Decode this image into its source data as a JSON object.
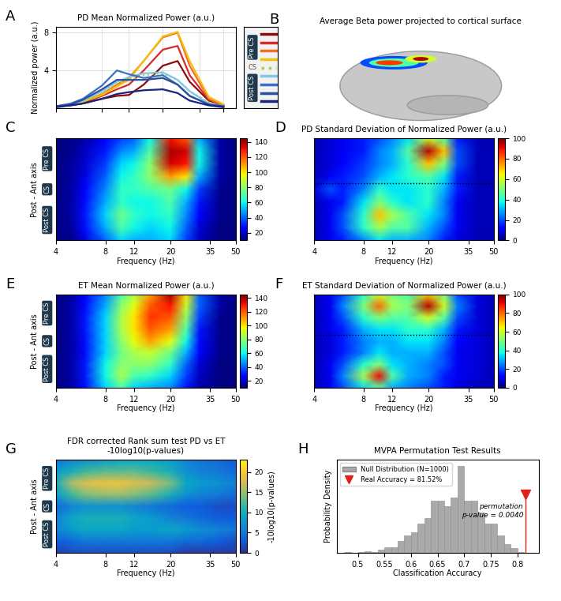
{
  "chart_data": [
    {
      "panel": "A",
      "type": "line",
      "title": "PD Mean Normalized Power (a.u.)",
      "ylabel": "Normalized power (a.u.)",
      "log": "x",
      "grid": true,
      "tick_labels": "y",
      "x": [
        4,
        5,
        6,
        8,
        10,
        12,
        15,
        20,
        25,
        30,
        40,
        50
      ],
      "xlim": [
        4,
        60
      ],
      "xticks": [
        4,
        8,
        12,
        20,
        35,
        50
      ],
      "ylim": [
        0,
        8.6
      ],
      "yticks": [
        4,
        8
      ],
      "annotations": [
        "Pre CS",
        "CS",
        "Post CS"
      ],
      "series": [
        {
          "color": "#8b0a0a",
          "line_style": "solid",
          "values": [
            0.2,
            0.3,
            0.5,
            1.0,
            1.3,
            1.4,
            2.5,
            4.5,
            5.0,
            2.8,
            0.8,
            0.3
          ]
        },
        {
          "color": "#d42a2a",
          "line_style": "solid",
          "values": [
            0.2,
            0.4,
            0.6,
            1.3,
            2.0,
            2.5,
            4.0,
            6.2,
            6.6,
            3.5,
            0.9,
            0.3
          ]
        },
        {
          "color": "#f0702a",
          "line_style": "solid",
          "values": [
            0.2,
            0.4,
            0.7,
            1.5,
            2.5,
            3.2,
            5.0,
            7.5,
            8.0,
            4.5,
            1.0,
            0.3
          ]
        },
        {
          "color": "#f5c010",
          "line_style": "solid",
          "values": [
            0.2,
            0.4,
            0.7,
            1.4,
            2.3,
            3.0,
            5.0,
            7.6,
            8.1,
            5.0,
            1.2,
            0.4
          ]
        },
        {
          "color": "#b5c940",
          "line_style": "dotted",
          "values": [
            0.2,
            0.4,
            0.7,
            1.6,
            2.6,
            3.0,
            3.5,
            3.7,
            3.0,
            1.8,
            0.6,
            0.2
          ]
        },
        {
          "color": "#7fc8e8",
          "line_style": "solid",
          "values": [
            0.2,
            0.4,
            0.8,
            1.8,
            2.8,
            3.3,
            3.7,
            3.8,
            3.0,
            1.8,
            0.5,
            0.2
          ]
        },
        {
          "color": "#3a70c0",
          "line_style": "solid",
          "values": [
            0.2,
            0.5,
            1.0,
            2.4,
            4.0,
            3.6,
            3.2,
            3.5,
            2.5,
            1.3,
            0.4,
            0.2
          ]
        },
        {
          "color": "#2a50a0",
          "line_style": "solid",
          "values": [
            0.2,
            0.4,
            0.9,
            2.0,
            3.0,
            3.0,
            3.0,
            3.2,
            2.5,
            1.3,
            0.4,
            0.2
          ]
        },
        {
          "color": "#1a237e",
          "line_style": "solid",
          "values": [
            0.1,
            0.3,
            0.5,
            1.0,
            1.5,
            1.7,
            1.9,
            2.0,
            1.6,
            0.8,
            0.3,
            0.1
          ]
        }
      ]
    },
    {
      "panel": "B",
      "type": "image",
      "title": "Average Beta power projected to cortical surface"
    },
    {
      "panel": "C",
      "type": "heatmap",
      "color": "jet",
      "log": "x",
      "tick_labels": "x",
      "xlabel": "Frequency (Hz)",
      "ylabel": "Post - Ant axis",
      "annotations": [
        "Pre CS",
        "CS",
        "Post CS"
      ],
      "x": [
        4,
        5,
        6,
        8,
        10,
        12,
        15,
        20,
        25,
        30,
        40,
        50
      ],
      "xlim": [
        4,
        50
      ],
      "xticks": [
        4,
        8,
        12,
        20,
        35,
        50
      ],
      "colorbar_range": [
        10,
        145
      ],
      "colorbar_ticks": [
        20,
        40,
        60,
        80,
        100,
        120,
        140
      ],
      "cells": [
        [
          10,
          12,
          15,
          25,
          35,
          40,
          60,
          130,
          120,
          50,
          15,
          10
        ],
        [
          10,
          12,
          18,
          30,
          45,
          50,
          70,
          140,
          135,
          60,
          15,
          10
        ],
        [
          10,
          14,
          20,
          35,
          55,
          60,
          80,
          135,
          130,
          60,
          15,
          10
        ],
        [
          10,
          14,
          22,
          40,
          60,
          65,
          80,
          110,
          100,
          50,
          15,
          10
        ],
        [
          10,
          15,
          25,
          45,
          65,
          65,
          70,
          75,
          60,
          35,
          12,
          10
        ],
        [
          10,
          15,
          28,
          50,
          65,
          60,
          60,
          70,
          50,
          30,
          12,
          10
        ],
        [
          10,
          15,
          30,
          55,
          75,
          65,
          60,
          65,
          45,
          25,
          12,
          10
        ],
        [
          10,
          14,
          28,
          50,
          70,
          60,
          55,
          60,
          40,
          20,
          10,
          10
        ],
        [
          10,
          12,
          22,
          40,
          55,
          50,
          50,
          55,
          35,
          18,
          10,
          10
        ]
      ]
    },
    {
      "panel": "D",
      "type": "heatmap",
      "color": "jet",
      "log": "x",
      "tick_labels": "x",
      "title": "PD Standard Deviation of Normalized Power (a.u.)",
      "xlabel": "Frequency (Hz)",
      "x": [
        4,
        5,
        6,
        8,
        10,
        12,
        15,
        20,
        25,
        30,
        40,
        50
      ],
      "xlim": [
        4,
        50
      ],
      "xticks": [
        4,
        8,
        12,
        20,
        35,
        50
      ],
      "colorbar_range": [
        0,
        100
      ],
      "colorbar_ticks": [
        0,
        20,
        40,
        60,
        80,
        100
      ],
      "cells": [
        [
          5,
          8,
          10,
          15,
          20,
          25,
          35,
          60,
          45,
          15,
          5,
          5
        ],
        [
          5,
          8,
          10,
          15,
          25,
          30,
          45,
          95,
          70,
          20,
          5,
          5
        ],
        [
          5,
          8,
          12,
          18,
          25,
          30,
          40,
          70,
          50,
          20,
          5,
          5
        ],
        [
          5,
          10,
          15,
          20,
          30,
          35,
          40,
          45,
          35,
          15,
          5,
          5
        ],
        [
          8,
          20,
          15,
          25,
          40,
          35,
          35,
          40,
          30,
          15,
          5,
          5
        ],
        [
          5,
          10,
          15,
          35,
          50,
          40,
          35,
          40,
          25,
          10,
          5,
          5
        ],
        [
          5,
          10,
          20,
          40,
          70,
          55,
          45,
          35,
          25,
          10,
          5,
          5
        ],
        [
          5,
          10,
          20,
          40,
          55,
          45,
          45,
          30,
          20,
          10,
          5,
          5
        ],
        [
          5,
          10,
          15,
          25,
          35,
          30,
          30,
          25,
          15,
          8,
          5,
          5
        ]
      ]
    },
    {
      "panel": "E",
      "type": "heatmap",
      "color": "jet",
      "log": "x",
      "tick_labels": "x",
      "title": "ET Mean Normalized Power (a.u.)",
      "xlabel": "Frequency (Hz)",
      "ylabel": "Post - Ant axis",
      "annotations": [
        "Pre CS",
        "CS",
        "Post CS"
      ],
      "x": [
        4,
        5,
        6,
        8,
        10,
        12,
        15,
        20,
        25,
        30,
        40,
        50
      ],
      "xlim": [
        4,
        50
      ],
      "xticks": [
        4,
        8,
        12,
        20,
        35,
        50
      ],
      "colorbar_range": [
        10,
        145
      ],
      "colorbar_ticks": [
        20,
        40,
        60,
        80,
        100,
        120,
        140
      ],
      "cells": [
        [
          10,
          15,
          25,
          45,
          70,
          85,
          110,
          140,
          100,
          40,
          15,
          10
        ],
        [
          10,
          15,
          28,
          50,
          80,
          95,
          120,
          130,
          90,
          40,
          15,
          10
        ],
        [
          10,
          15,
          30,
          55,
          85,
          100,
          125,
          120,
          80,
          35,
          12,
          10
        ],
        [
          10,
          15,
          30,
          55,
          85,
          100,
          120,
          110,
          70,
          30,
          12,
          10
        ],
        [
          10,
          15,
          28,
          55,
          80,
          95,
          110,
          95,
          60,
          28,
          12,
          10
        ],
        [
          10,
          15,
          28,
          55,
          75,
          85,
          90,
          75,
          50,
          25,
          12,
          10
        ],
        [
          10,
          15,
          30,
          60,
          80,
          80,
          80,
          65,
          40,
          20,
          10,
          10
        ],
        [
          10,
          15,
          30,
          60,
          85,
          70,
          65,
          55,
          35,
          18,
          10,
          10
        ],
        [
          10,
          15,
          28,
          55,
          70,
          55,
          50,
          45,
          30,
          15,
          10,
          10
        ]
      ]
    },
    {
      "panel": "F",
      "type": "heatmap",
      "color": "jet",
      "log": "x",
      "tick_labels": "x",
      "title": "ET Standard Deviation of Normalized Power (a.u.)",
      "xlabel": "Frequency (Hz)",
      "x": [
        4,
        5,
        6,
        8,
        10,
        12,
        15,
        20,
        25,
        30,
        40,
        50
      ],
      "xlim": [
        4,
        50
      ],
      "xticks": [
        4,
        8,
        12,
        20,
        35,
        50
      ],
      "colorbar_range": [
        0,
        100
      ],
      "colorbar_ticks": [
        0,
        20,
        40,
        60,
        80,
        100
      ],
      "cells": [
        [
          5,
          10,
          20,
          40,
          60,
          50,
          45,
          70,
          50,
          20,
          8,
          5
        ],
        [
          5,
          10,
          25,
          50,
          80,
          55,
          50,
          95,
          60,
          25,
          8,
          5
        ],
        [
          5,
          10,
          20,
          40,
          50,
          45,
          45,
          60,
          45,
          20,
          8,
          5
        ],
        [
          5,
          10,
          15,
          30,
          35,
          35,
          40,
          40,
          30,
          15,
          8,
          5
        ],
        [
          5,
          8,
          15,
          25,
          30,
          30,
          35,
          35,
          25,
          12,
          8,
          5
        ],
        [
          5,
          8,
          15,
          25,
          35,
          30,
          30,
          30,
          20,
          10,
          8,
          5
        ],
        [
          5,
          10,
          20,
          40,
          50,
          35,
          30,
          25,
          20,
          10,
          8,
          5
        ],
        [
          5,
          10,
          25,
          55,
          90,
          45,
          30,
          25,
          15,
          10,
          8,
          5
        ],
        [
          5,
          10,
          20,
          35,
          45,
          30,
          25,
          20,
          15,
          8,
          5,
          5
        ]
      ]
    },
    {
      "panel": "G",
      "type": "heatmap",
      "color": "parula",
      "log": "x",
      "tick_labels": "x",
      "title": "FDR corrected Rank sum test PD vs ET\n-10log10(p-values)",
      "xlabel": "Frequency (Hz)",
      "ylabel": "Post - Ant axis",
      "annotations": [
        "Pre CS",
        "CS",
        "Post CS"
      ],
      "colorbar_label": "-10log10(p-values)",
      "x": [
        4,
        5,
        6,
        8,
        10,
        12,
        15,
        20,
        25,
        30,
        40,
        50
      ],
      "xlim": [
        4,
        50
      ],
      "xticks": [
        4,
        8,
        12,
        20,
        35,
        50
      ],
      "colorbar_range": [
        0,
        23
      ],
      "colorbar_ticks": [
        0,
        5,
        10,
        15,
        20
      ],
      "cells": [
        [
          5,
          6,
          7,
          8,
          9,
          9,
          9,
          8,
          6,
          5,
          4,
          3
        ],
        [
          8,
          10,
          12,
          13,
          13,
          13,
          12,
          10,
          7,
          6,
          5,
          4
        ],
        [
          10,
          16,
          18,
          19,
          19,
          18,
          17,
          14,
          9,
          8,
          7,
          6
        ],
        [
          8,
          12,
          14,
          15,
          15,
          14,
          13,
          10,
          7,
          6,
          5,
          4
        ],
        [
          4,
          6,
          7,
          7,
          7,
          6,
          5,
          4,
          3,
          3,
          2,
          2
        ],
        [
          6,
          9,
          10,
          10,
          10,
          9,
          8,
          6,
          5,
          4,
          3,
          3
        ],
        [
          6,
          8,
          9,
          9,
          9,
          8,
          8,
          9,
          8,
          7,
          6,
          5
        ],
        [
          3,
          4,
          5,
          5,
          5,
          5,
          5,
          5,
          4,
          4,
          3,
          2
        ],
        [
          1,
          2,
          2,
          2,
          2,
          2,
          2,
          2,
          1,
          1,
          1,
          1
        ]
      ]
    },
    {
      "panel": "H",
      "type": "histogram",
      "title": "MVPA Permutation Test Results",
      "xlabel": "Classification Accuracy",
      "ylabel": "Probability Density",
      "tick_labels": "x",
      "legend": "upper left",
      "xlim": [
        0.46,
        0.84
      ],
      "xticks": [
        0.5,
        0.55,
        0.6,
        0.65,
        0.7,
        0.75,
        0.8
      ],
      "ylim": [
        0,
        16
      ],
      "bins": [
        0.475,
        0.4875,
        0.5,
        0.5125,
        0.525,
        0.5375,
        0.55,
        0.5625,
        0.575,
        0.5875,
        0.6,
        0.6125,
        0.625,
        0.6375,
        0.65,
        0.6625,
        0.675,
        0.6875,
        0.7,
        0.7125,
        0.725,
        0.7375,
        0.75,
        0.7625,
        0.775,
        0.7875,
        0.8,
        0.8125,
        0.825
      ],
      "series": [
        {
          "name": "Null Distribution (N=1000)",
          "color": "#a9a9a9",
          "values": [
            0.1,
            0,
            0.2,
            0.3,
            0.2,
            0.5,
            1,
            1,
            2,
            3,
            3.5,
            5,
            6,
            9,
            9,
            8,
            9.5,
            15,
            9,
            9,
            7,
            5,
            5,
            3,
            1.5,
            0.8,
            0.2,
            0
          ]
        }
      ],
      "real_accuracy": {
        "name": "Real Accuracy = 81.52%",
        "color": "#e0201b",
        "value": 0.8152,
        "density": 10
      },
      "annotations": [
        "permutation\np-value = 0.0040"
      ]
    }
  ]
}
